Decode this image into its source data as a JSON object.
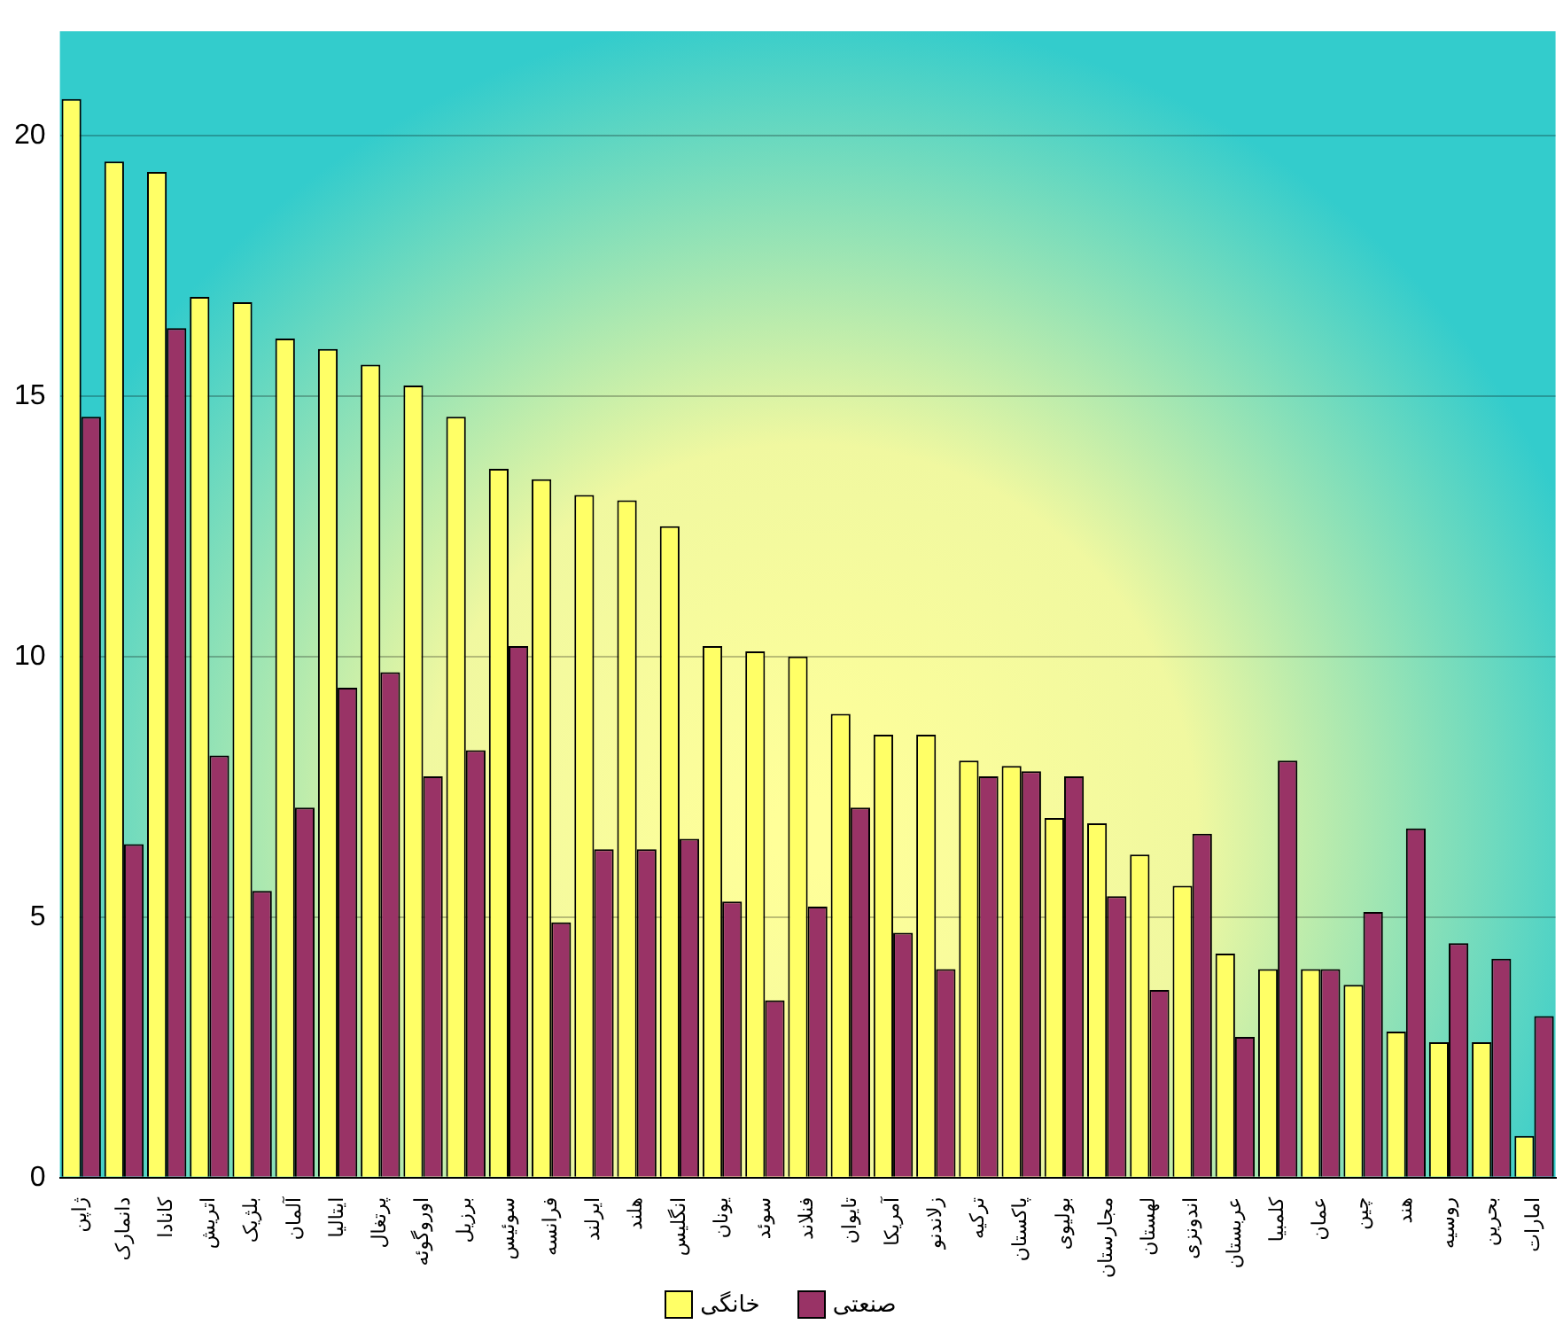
{
  "chart_data": {
    "type": "bar",
    "categories": [
      "ژاپن",
      "دانمارک",
      "کانادا",
      "اتریش",
      "بلژیک",
      "آلمان",
      "ایتالیا",
      "پرتغال",
      "اوروگوئه",
      "برزیل",
      "سوئیس",
      "فرانسه",
      "ایرلند",
      "هلند",
      "انگلیس",
      "یونان",
      "سوئد",
      "فنلاند",
      "تایوان",
      "آمریکا",
      "زلاندنو",
      "ترکیه",
      "پاکستان",
      "بولیوی",
      "مجارستان",
      "لهستان",
      "اندونزی",
      "عربستان",
      "کلمبیا",
      "عمان",
      "چین",
      "هند",
      "روسیه",
      "بحرین",
      "امارات"
    ],
    "series": [
      {
        "name": "خانگی",
        "color": "#ffff66",
        "values": [
          20.7,
          19.5,
          19.3,
          16.9,
          16.8,
          16.1,
          15.9,
          15.6,
          15.2,
          14.6,
          13.6,
          13.4,
          13.1,
          13.0,
          12.5,
          10.2,
          10.1,
          10.0,
          8.9,
          8.5,
          8.5,
          8.0,
          7.9,
          6.9,
          6.8,
          6.2,
          5.6,
          4.3,
          4.0,
          4.0,
          3.7,
          2.8,
          2.6,
          2.6,
          0.8
        ]
      },
      {
        "name": "صنعتی",
        "color": "#993366",
        "values": [
          14.6,
          6.4,
          16.3,
          8.1,
          5.5,
          7.1,
          9.4,
          9.7,
          7.7,
          8.2,
          10.2,
          4.9,
          6.3,
          6.3,
          6.5,
          5.3,
          3.4,
          5.2,
          7.1,
          4.7,
          4.0,
          7.7,
          7.8,
          7.7,
          5.4,
          3.6,
          6.6,
          2.7,
          8.0,
          4.0,
          5.1,
          6.7,
          4.5,
          4.2,
          3.1
        ]
      }
    ],
    "ylim": [
      0,
      22
    ],
    "yticks": [
      0,
      5,
      10,
      15,
      20
    ],
    "grid": "y",
    "legend": "bottom"
  }
}
